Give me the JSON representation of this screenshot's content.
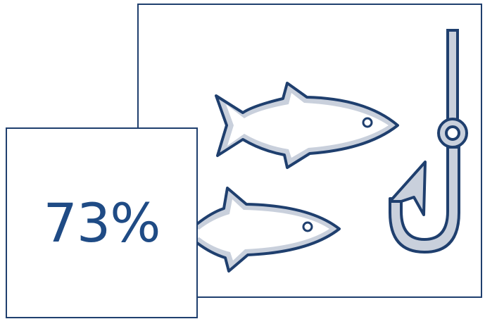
{
  "stat": {
    "value": "73%"
  },
  "illustration": {
    "icons": [
      "fish-icon",
      "fish-icon",
      "fishing-hook-icon"
    ],
    "colors": {
      "outline": "#1f3f6e",
      "fill": "#c9d0dc",
      "text": "#1f4b85",
      "background": "#ffffff"
    }
  }
}
